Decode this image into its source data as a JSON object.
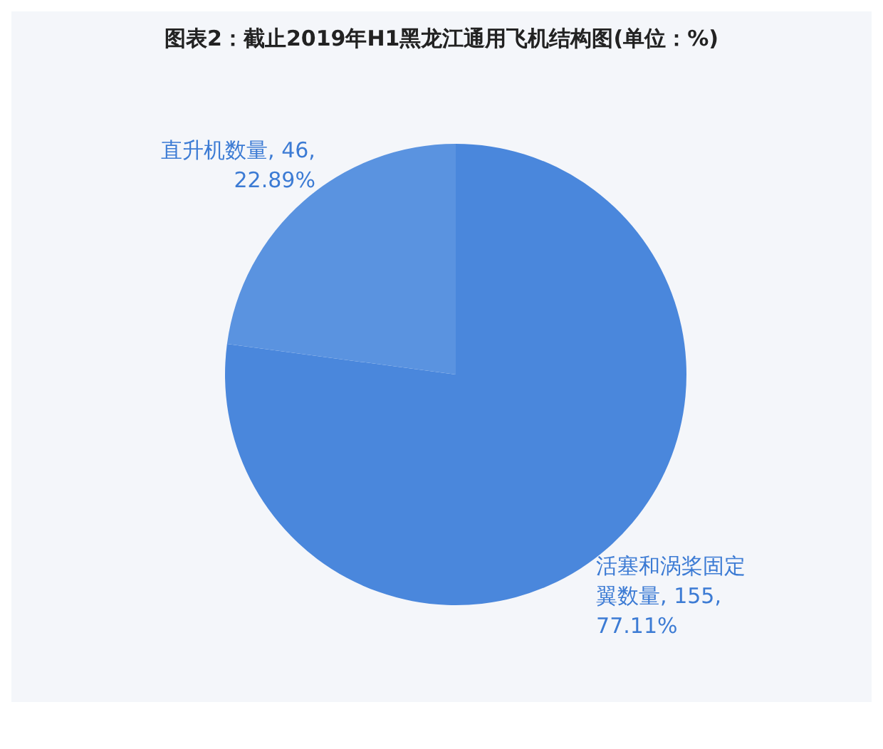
{
  "chart_data": {
    "type": "pie",
    "title": "图表2：截止2019年H1黑龙江通用飞机结构图(单位：%)",
    "categories": [
      "活塞和涡桨固定翼数量",
      "直升机数量"
    ],
    "values": [
      155,
      46
    ],
    "value_labels": [
      "155, 77.11%",
      "46, 22.89%"
    ],
    "colors": [
      "#4a87dc",
      "#5a93e0"
    ]
  }
}
